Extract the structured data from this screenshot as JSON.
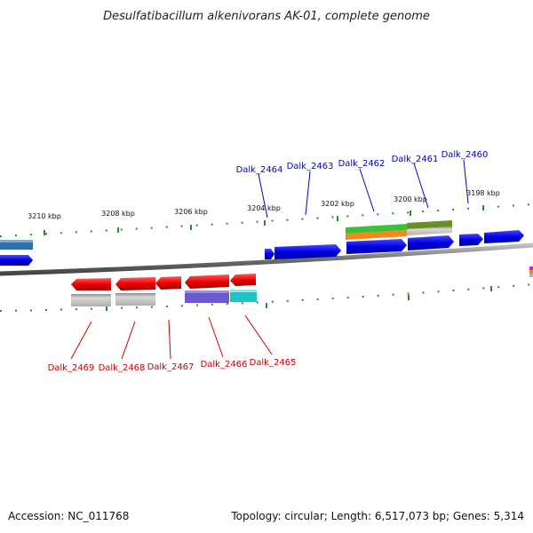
{
  "title": "Desulfatibacillum alkenivorans AK-01, complete genome",
  "accession": "Accession: NC_011768",
  "summary": "Topology: circular; Length: 6,517,073 bp; Genes: 5,314",
  "ticks": [
    "3210 kbp",
    "3208 kbp",
    "3206 kbp",
    "3204 kbp",
    "3202 kbp",
    "3200 kbp",
    "3198 kbp"
  ],
  "genes_forward": [
    "Dalk_2464",
    "Dalk_2463",
    "Dalk_2462",
    "Dalk_2461",
    "Dalk_2460"
  ],
  "genes_reverse": [
    "Dalk_2469",
    "Dalk_2468",
    "Dalk_2467",
    "Dalk_2466",
    "Dalk_2465"
  ],
  "colors": {
    "forward": "#0000ee",
    "reverse": "#ee0000",
    "tick": "#228b22",
    "backbone": "#7a7a7a"
  }
}
